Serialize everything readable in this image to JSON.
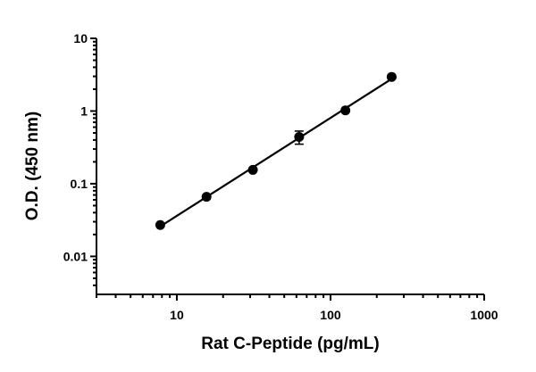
{
  "chart_data": {
    "type": "scatter",
    "xlabel": "Rat C-Peptide (pg/mL)",
    "ylabel": "O.D. (450 nm)",
    "xscale": "log",
    "yscale": "log",
    "xlim": [
      3,
      1000
    ],
    "ylim": [
      0.003,
      10
    ],
    "x_ticks": [
      10,
      100,
      1000
    ],
    "x_tick_labels": [
      "10",
      "100",
      "1000"
    ],
    "y_ticks": [
      0.01,
      0.1,
      1,
      10
    ],
    "y_tick_labels": [
      "0.01",
      "0.1",
      "1",
      "10"
    ],
    "grid": false,
    "legend": "none",
    "series": [
      {
        "x": [
          7.8,
          15.6,
          31.25,
          62.5,
          125,
          250
        ],
        "y": [
          0.027,
          0.066,
          0.155,
          0.44,
          1.02,
          2.95
        ],
        "y_err": [
          0,
          0,
          0,
          0.09,
          0,
          0
        ],
        "fit": "linear (log-log)"
      }
    ]
  }
}
